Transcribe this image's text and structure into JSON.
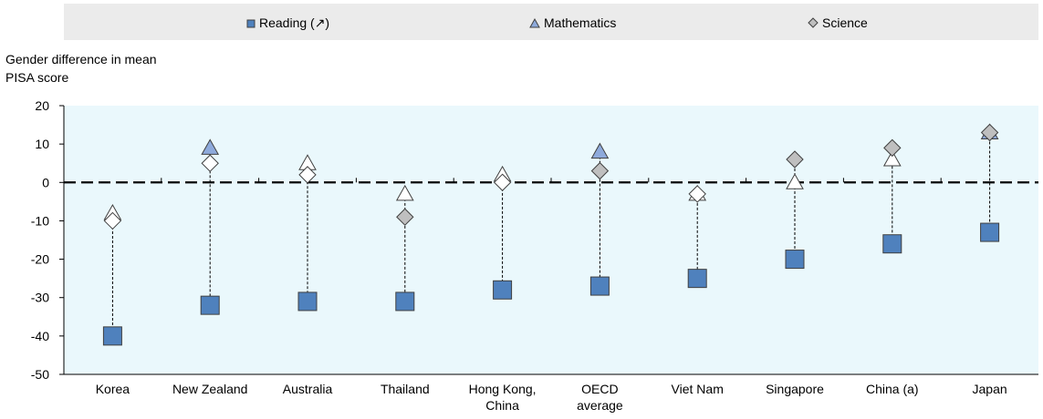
{
  "chart_data": {
    "type": "scatter",
    "title": "",
    "ylabel_lines": [
      "Gender difference in mean",
      "PISA score"
    ],
    "ylim": [
      -50,
      20
    ],
    "yticks": [
      20,
      10,
      0,
      -10,
      -20,
      -30,
      -40,
      -50
    ],
    "categories": [
      [
        "Korea"
      ],
      [
        "New Zealand"
      ],
      [
        "Australia"
      ],
      [
        "Thailand"
      ],
      [
        "Hong Kong,",
        "China"
      ],
      [
        "OECD",
        "average"
      ],
      [
        "Viet Nam"
      ],
      [
        "Singapore"
      ],
      [
        "China (a)"
      ],
      [
        "Japan"
      ]
    ],
    "series": [
      {
        "name": "Reading (↗)",
        "marker": "square",
        "values": [
          -40,
          -32,
          -31,
          -31,
          -28,
          -27,
          -25,
          -20,
          -16,
          -13
        ],
        "significant": [
          true,
          true,
          true,
          true,
          true,
          true,
          true,
          true,
          true,
          true
        ]
      },
      {
        "name": "Mathematics",
        "marker": "triangle",
        "values": [
          -8,
          9,
          5,
          -3,
          2,
          8,
          -3,
          0,
          6,
          13
        ],
        "significant": [
          false,
          true,
          false,
          false,
          false,
          true,
          false,
          false,
          false,
          true
        ]
      },
      {
        "name": "Science",
        "marker": "diamond",
        "values": [
          -10,
          5,
          2,
          -9,
          0,
          3,
          -3,
          6,
          9,
          13
        ],
        "significant": [
          false,
          false,
          false,
          true,
          false,
          true,
          false,
          true,
          true,
          true
        ]
      }
    ],
    "grid": false,
    "legend_position": "top",
    "colors": {
      "reading": "#4f81bd",
      "math_sig": "#8eaadb",
      "science_sig": "#bfbfbf",
      "nonsig": "#ffffff",
      "plot_bg": "#eaf8fc",
      "marker_stroke": "#404040"
    }
  }
}
